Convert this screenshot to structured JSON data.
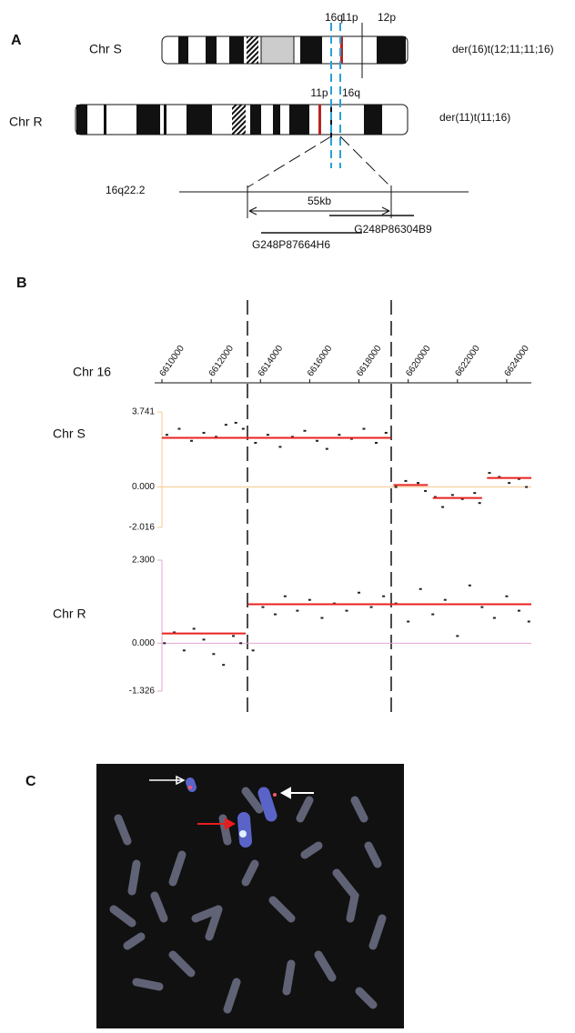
{
  "panel_a": {
    "label": "A",
    "chr_s": "Chr S",
    "chr_s_name": "der(16)t(12;11;11;16)",
    "chr_r": "Chr R",
    "chr_r_name": "der(11)t(11;16)",
    "bands_s": [
      "16q",
      "11p",
      "12p"
    ],
    "bands_r": [
      "11p",
      "16q"
    ],
    "locus": "16q22.2",
    "size": "55kb",
    "clones": [
      "G248P87664H6",
      "G248P86304B9"
    ]
  },
  "panel_b": {
    "label": "B",
    "axis_title": "Chr 16"
  },
  "chart_data": [
    {
      "type": "scatter",
      "label": "Chr S",
      "xlim": [
        6610000,
        6625000
      ],
      "xticks": [
        6610000,
        6612000,
        6614000,
        6616000,
        6618000,
        6620000,
        6622000,
        6624000
      ],
      "ylim": [
        -2.016,
        3.741
      ],
      "yticks": [
        3.741,
        {
          "value": 0,
          "label": "0.000"
        },
        -2.016
      ],
      "axis_color": "#f7c98f",
      "color": "#222222",
      "segment_color": "#e8231f",
      "x": [
        6610200,
        6610700,
        6611200,
        6611700,
        6612200,
        6612600,
        6613000,
        6613300,
        6613800,
        6614300,
        6614800,
        6615300,
        6615800,
        6616300,
        6616700,
        6617200,
        6617700,
        6618200,
        6618700,
        6619100,
        6619500,
        6619900,
        6620400,
        6620700,
        6621100,
        6621400,
        6621800,
        6622200,
        6622700,
        6622900,
        6623300,
        6623700,
        6624100,
        6624500,
        6624800
      ],
      "values": [
        2.6,
        2.9,
        2.3,
        2.7,
        2.5,
        3.1,
        3.2,
        2.9,
        2.2,
        2.6,
        2.0,
        2.5,
        2.8,
        2.3,
        1.9,
        2.6,
        2.4,
        2.9,
        2.2,
        2.7,
        0.0,
        0.3,
        0.2,
        -0.2,
        -0.5,
        -1.0,
        -0.4,
        -0.6,
        -0.3,
        -0.8,
        0.7,
        0.5,
        0.2,
        0.4,
        0.0
      ],
      "segments": [
        {
          "x": [
            6610000,
            6619300
          ],
          "value": 2.45
        },
        {
          "x": [
            6619400,
            6620800
          ],
          "value": 0.1
        },
        {
          "x": [
            6621000,
            6623000
          ],
          "value": -0.55
        },
        {
          "x": [
            6623200,
            6625000
          ],
          "value": 0.45
        }
      ]
    },
    {
      "type": "scatter",
      "label": "Chr R",
      "xlim": [
        6610000,
        6625000
      ],
      "ylim": [
        -1.326,
        2.3
      ],
      "yticks": [
        {
          "value": 2.3,
          "label": "2.300"
        },
        {
          "value": 0,
          "label": "0.000"
        },
        -1.326
      ],
      "axis_color": "#e4a6d4",
      "color": "#222222",
      "segment_color": "#e8231f",
      "x": [
        6610100,
        6610500,
        6610900,
        6611300,
        6611700,
        6612100,
        6612500,
        6612900,
        6613200,
        6613700,
        6614100,
        6614600,
        6615000,
        6615500,
        6616000,
        6616500,
        6617000,
        6617500,
        6618000,
        6618500,
        6619000,
        6619500,
        6620000,
        6620500,
        6621000,
        6621500,
        6622000,
        6622500,
        6623000,
        6623500,
        6624000,
        6624500,
        6624900
      ],
      "values": [
        0.0,
        0.3,
        -0.2,
        0.4,
        0.1,
        -0.3,
        -0.6,
        0.2,
        0.0,
        -0.2,
        1.0,
        0.8,
        1.3,
        0.9,
        1.2,
        0.7,
        1.1,
        0.9,
        1.4,
        1.0,
        1.3,
        1.1,
        0.6,
        1.5,
        0.8,
        1.2,
        0.2,
        1.6,
        1.0,
        0.7,
        1.3,
        0.9,
        0.6
      ],
      "segments": [
        {
          "x": [
            6610000,
            6613400
          ],
          "value": 0.27
        },
        {
          "x": [
            6613500,
            6625000
          ],
          "value": 1.08
        }
      ]
    }
  ],
  "panel_c": {
    "label": "C"
  }
}
